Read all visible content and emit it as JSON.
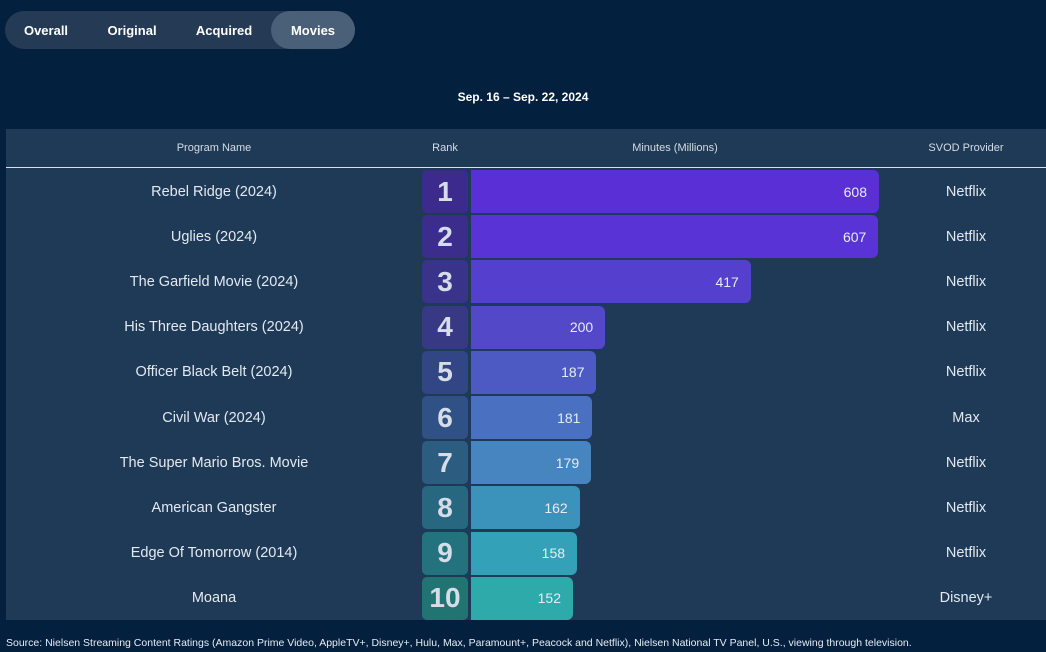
{
  "tabs": [
    {
      "label": "Overall",
      "active": false
    },
    {
      "label": "Original",
      "active": false
    },
    {
      "label": "Acquired",
      "active": false
    },
    {
      "label": "Movies",
      "active": true
    }
  ],
  "date_range": "Sep. 16 – Sep. 22, 2024",
  "headers": {
    "program": "Program Name",
    "rank": "Rank",
    "minutes": "Minutes (Millions)",
    "provider": "SVOD Provider"
  },
  "colors": {
    "background": "#03203f",
    "table": "#1f3a56",
    "bars": [
      "#5a2fd6",
      "#5a33d6",
      "#553fcf",
      "#5248c8",
      "#4e5ac4",
      "#4a70c2",
      "#4685c0",
      "#3b92bb",
      "#33a2b8",
      "#2eaaaa"
    ],
    "ranks": [
      "#3c2a8c",
      "#3c2c8c",
      "#3a338a",
      "#373985",
      "#324585",
      "#2f5185",
      "#2d5c81",
      "#286780",
      "#24727d",
      "#227472"
    ]
  },
  "chart_data": {
    "type": "bar",
    "orientation": "horizontal",
    "xlabel": "Minutes (Millions)",
    "rows": [
      {
        "rank": "1",
        "program": "Rebel Ridge (2024)",
        "minutes": 608,
        "provider": "Netflix"
      },
      {
        "rank": "2",
        "program": "Uglies (2024)",
        "minutes": 607,
        "provider": "Netflix"
      },
      {
        "rank": "3",
        "program": "The Garfield Movie (2024)",
        "minutes": 417,
        "provider": "Netflix"
      },
      {
        "rank": "4",
        "program": "His Three Daughters (2024)",
        "minutes": 200,
        "provider": "Netflix"
      },
      {
        "rank": "5",
        "program": "Officer Black Belt (2024)",
        "minutes": 187,
        "provider": "Netflix"
      },
      {
        "rank": "6",
        "program": "Civil War (2024)",
        "minutes": 181,
        "provider": "Max"
      },
      {
        "rank": "7",
        "program": "The Super Mario Bros. Movie",
        "minutes": 179,
        "provider": "Netflix"
      },
      {
        "rank": "8",
        "program": "American Gangster",
        "minutes": 162,
        "provider": "Netflix"
      },
      {
        "rank": "9",
        "program": "Edge Of Tomorrow (2014)",
        "minutes": 158,
        "provider": "Netflix"
      },
      {
        "rank": "10",
        "program": "Moana",
        "minutes": 152,
        "provider": "Disney+"
      }
    ]
  },
  "source": "Source: Nielsen Streaming Content Ratings (Amazon Prime Video, AppleTV+, Disney+, Hulu, Max, Paramount+, Peacock and Netflix), Nielsen National TV Panel, U.S., viewing through television."
}
